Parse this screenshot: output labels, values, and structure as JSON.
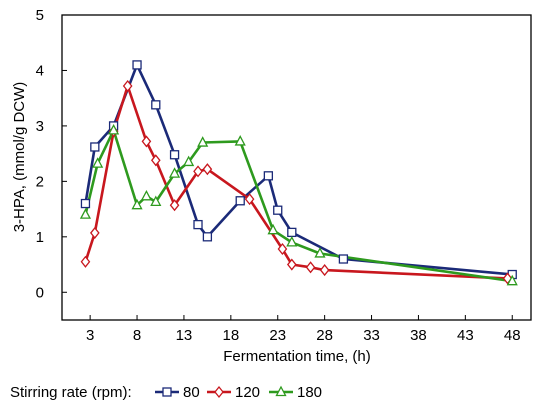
{
  "chart_data": {
    "type": "line",
    "title": "",
    "xlabel": "Fermentation time, (h)",
    "ylabel": "3-HPA, (mmol/g DCW)",
    "xlim": [
      0,
      50
    ],
    "ylim": [
      -0.5,
      5
    ],
    "xticks": [
      3,
      8,
      13,
      18,
      23,
      28,
      33,
      38,
      43,
      48
    ],
    "yticks": [
      0,
      1,
      2,
      3,
      4,
      5
    ],
    "grid": false,
    "legend": {
      "title": "Stirring rate (rpm):",
      "placement": "bottom"
    },
    "series": [
      {
        "name": "80",
        "color": "#1b2a78",
        "marker": "square",
        "x": [
          2.5,
          3.5,
          5.5,
          8,
          10,
          12,
          14.5,
          15.5,
          19,
          22,
          23,
          24.5,
          30,
          48
        ],
        "y": [
          1.6,
          2.62,
          3.0,
          4.1,
          3.38,
          2.48,
          1.22,
          1.0,
          1.65,
          2.1,
          1.48,
          1.08,
          0.6,
          0.32
        ]
      },
      {
        "name": "120",
        "color": "#c8171e",
        "marker": "diamond",
        "x": [
          2.5,
          3.5,
          5.5,
          7,
          9,
          10,
          12,
          14.5,
          15.5,
          20,
          23.5,
          24.5,
          26.5,
          28,
          47.5
        ],
        "y": [
          0.55,
          1.07,
          2.9,
          3.72,
          2.72,
          2.38,
          1.57,
          2.18,
          2.22,
          1.68,
          0.78,
          0.5,
          0.45,
          0.4,
          0.25
        ]
      },
      {
        "name": "180",
        "color": "#2e9a1e",
        "marker": "triangle",
        "x": [
          2.5,
          3.8,
          5.5,
          8,
          9,
          10,
          12,
          13.5,
          15,
          19,
          22.5,
          24.5,
          27.5,
          48
        ],
        "y": [
          1.4,
          2.32,
          2.92,
          1.57,
          1.73,
          1.63,
          2.14,
          2.35,
          2.7,
          2.72,
          1.12,
          0.9,
          0.7,
          0.2
        ]
      }
    ]
  }
}
